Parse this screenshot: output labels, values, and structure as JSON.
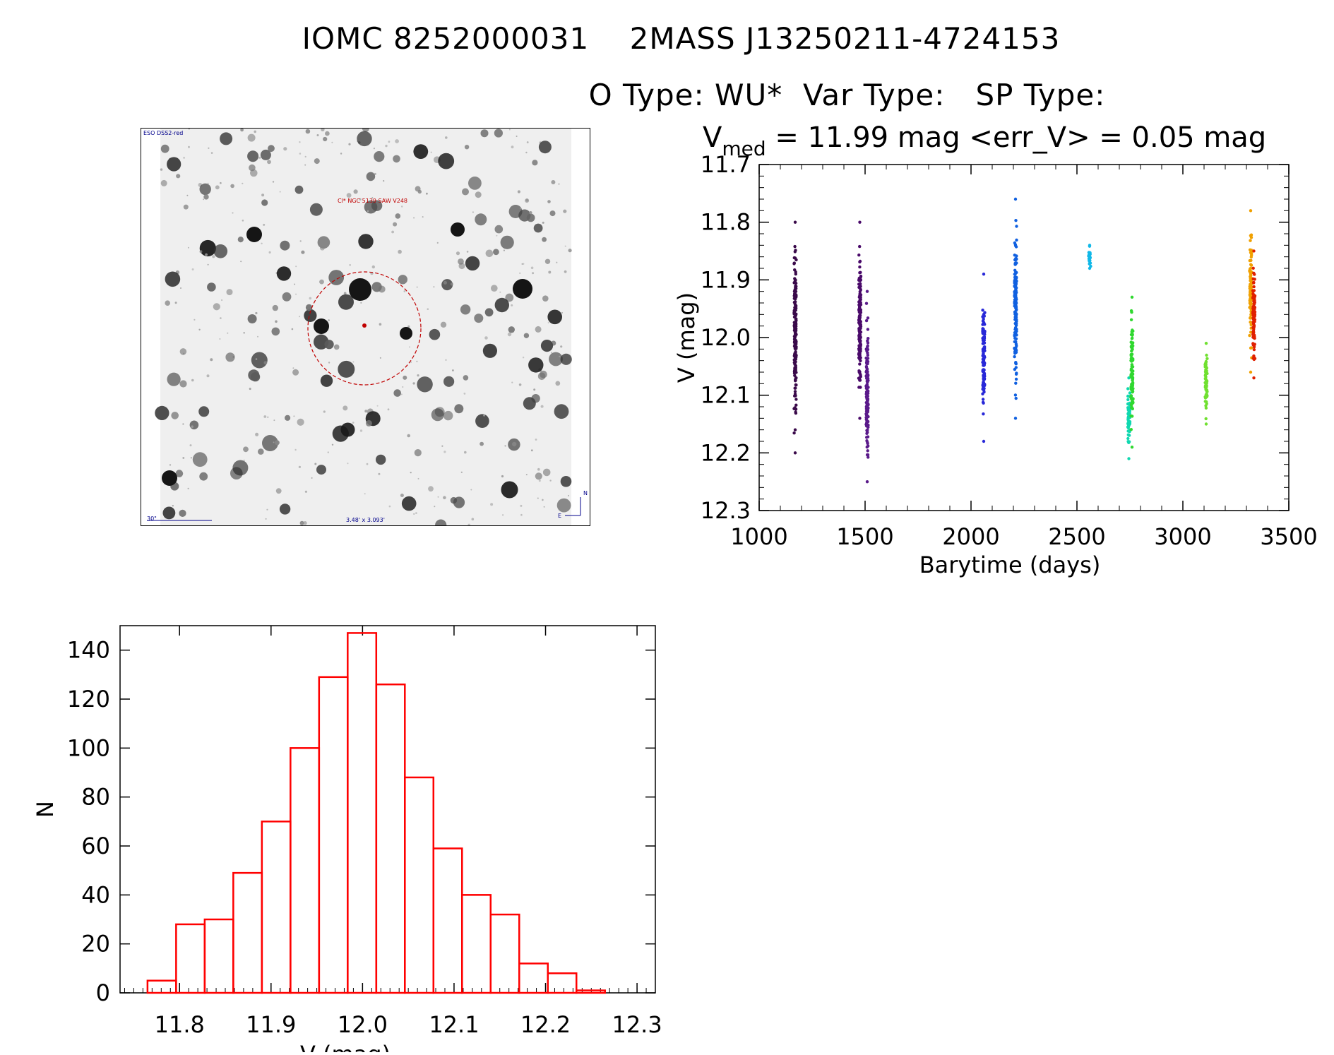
{
  "header": {
    "line1": "IOMC 8252000031    2MASS J13250211-4724153",
    "line2": "O Type: WU*  Var Type:   SP Type:"
  },
  "finder_chart": {
    "survey_label": "ESO DSS2-red",
    "target_label": "Cl* NGC 5139 SAW V248",
    "scale_label": "30\"",
    "size_label": "3.48' x 3.093'",
    "north_label": "N",
    "east_label": "E",
    "target_circle_color": "#c00000"
  },
  "chart_data": [
    {
      "type": "scatter",
      "title_parts": {
        "symbol": "V",
        "subscript": "med",
        "rest": " = 11.99 mag <err_V> = 0.05 mag"
      },
      "xlabel": "Barytime (days)",
      "ylabel": "V (mag)",
      "xlim": [
        1000,
        3500
      ],
      "ylim": [
        12.3,
        11.7
      ],
      "y_inverted": true,
      "xticks": [
        "1000",
        "1500",
        "2000",
        "2500",
        "3000",
        "3500"
      ],
      "yticks": [
        "11.7",
        "11.8",
        "11.9",
        "12.0",
        "12.1",
        "12.2",
        "12.3"
      ],
      "groups": [
        {
          "x": 1170,
          "ymin": 11.8,
          "ymax": 12.2,
          "color": "#3a0a4a"
        },
        {
          "x": 1475,
          "ymin": 11.8,
          "ymax": 12.14,
          "color": "#4a0a6a"
        },
        {
          "x": 1510,
          "ymin": 11.92,
          "ymax": 12.25,
          "color": "#5a1a8a"
        },
        {
          "x": 2060,
          "ymin": 11.89,
          "ymax": 12.18,
          "color": "#2828d8"
        },
        {
          "x": 2210,
          "ymin": 11.76,
          "ymax": 12.14,
          "color": "#1060e0"
        },
        {
          "x": 2560,
          "ymin": 11.84,
          "ymax": 11.88,
          "color": "#10b8e8"
        },
        {
          "x": 2745,
          "ymin": 12.07,
          "ymax": 12.21,
          "color": "#10d8b0"
        },
        {
          "x": 2760,
          "ymin": 11.93,
          "ymax": 12.19,
          "color": "#30d830"
        },
        {
          "x": 3110,
          "ymin": 12.01,
          "ymax": 12.15,
          "color": "#70e030"
        },
        {
          "x": 3320,
          "ymin": 11.78,
          "ymax": 12.06,
          "color": "#f0a000"
        },
        {
          "x": 3335,
          "ymin": 11.85,
          "ymax": 12.07,
          "color": "#e02000"
        }
      ]
    },
    {
      "type": "bar",
      "xlabel": "V (mag)",
      "ylabel": "N",
      "xlim": [
        11.735,
        12.32
      ],
      "ylim": [
        0,
        150
      ],
      "xticks": [
        "11.8",
        "11.9",
        "12.0",
        "12.1",
        "12.2",
        "12.3"
      ],
      "yticks": [
        "0",
        "20",
        "40",
        "60",
        "80",
        "100",
        "120",
        "140"
      ],
      "bin_width": 0.03125,
      "bin_start": 11.765,
      "counts": [
        5,
        28,
        30,
        49,
        70,
        100,
        129,
        147,
        126,
        88,
        59,
        40,
        32,
        12,
        8,
        1
      ],
      "bar_color": "#ff0000"
    }
  ]
}
